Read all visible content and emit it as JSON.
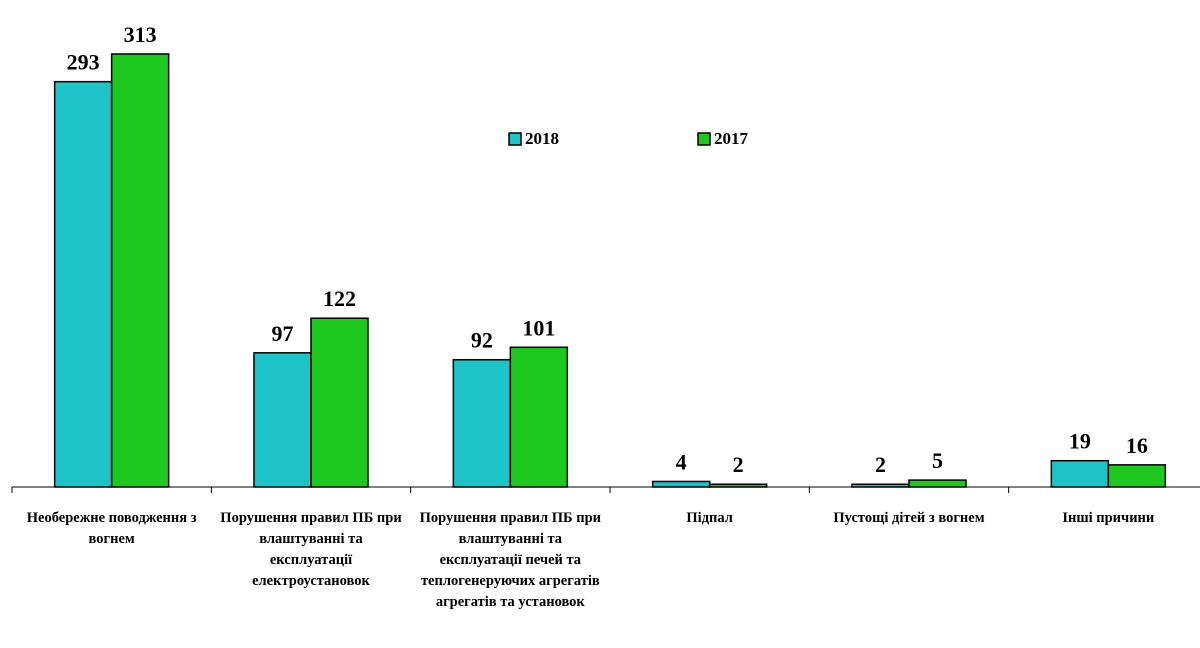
{
  "chart_data": {
    "type": "bar",
    "categories": [
      "Необережне поводження з вогнем",
      "Порушення правил ПБ при влаштуванні та експлуатації електроустановок",
      "Порушення правил ПБ при влаштуванні та експлуатації печей та теплогенеруючих агрегатів агрегатів та установок",
      "Підпал",
      "Пустощі дітей з вогнем",
      "Інші причини"
    ],
    "series": [
      {
        "name": "2018",
        "color": "#1ec3c8",
        "values": [
          293,
          97,
          92,
          4,
          2,
          19
        ]
      },
      {
        "name": "2017",
        "color": "#1ec81e",
        "values": [
          313,
          122,
          101,
          2,
          5,
          16
        ]
      }
    ]
  }
}
